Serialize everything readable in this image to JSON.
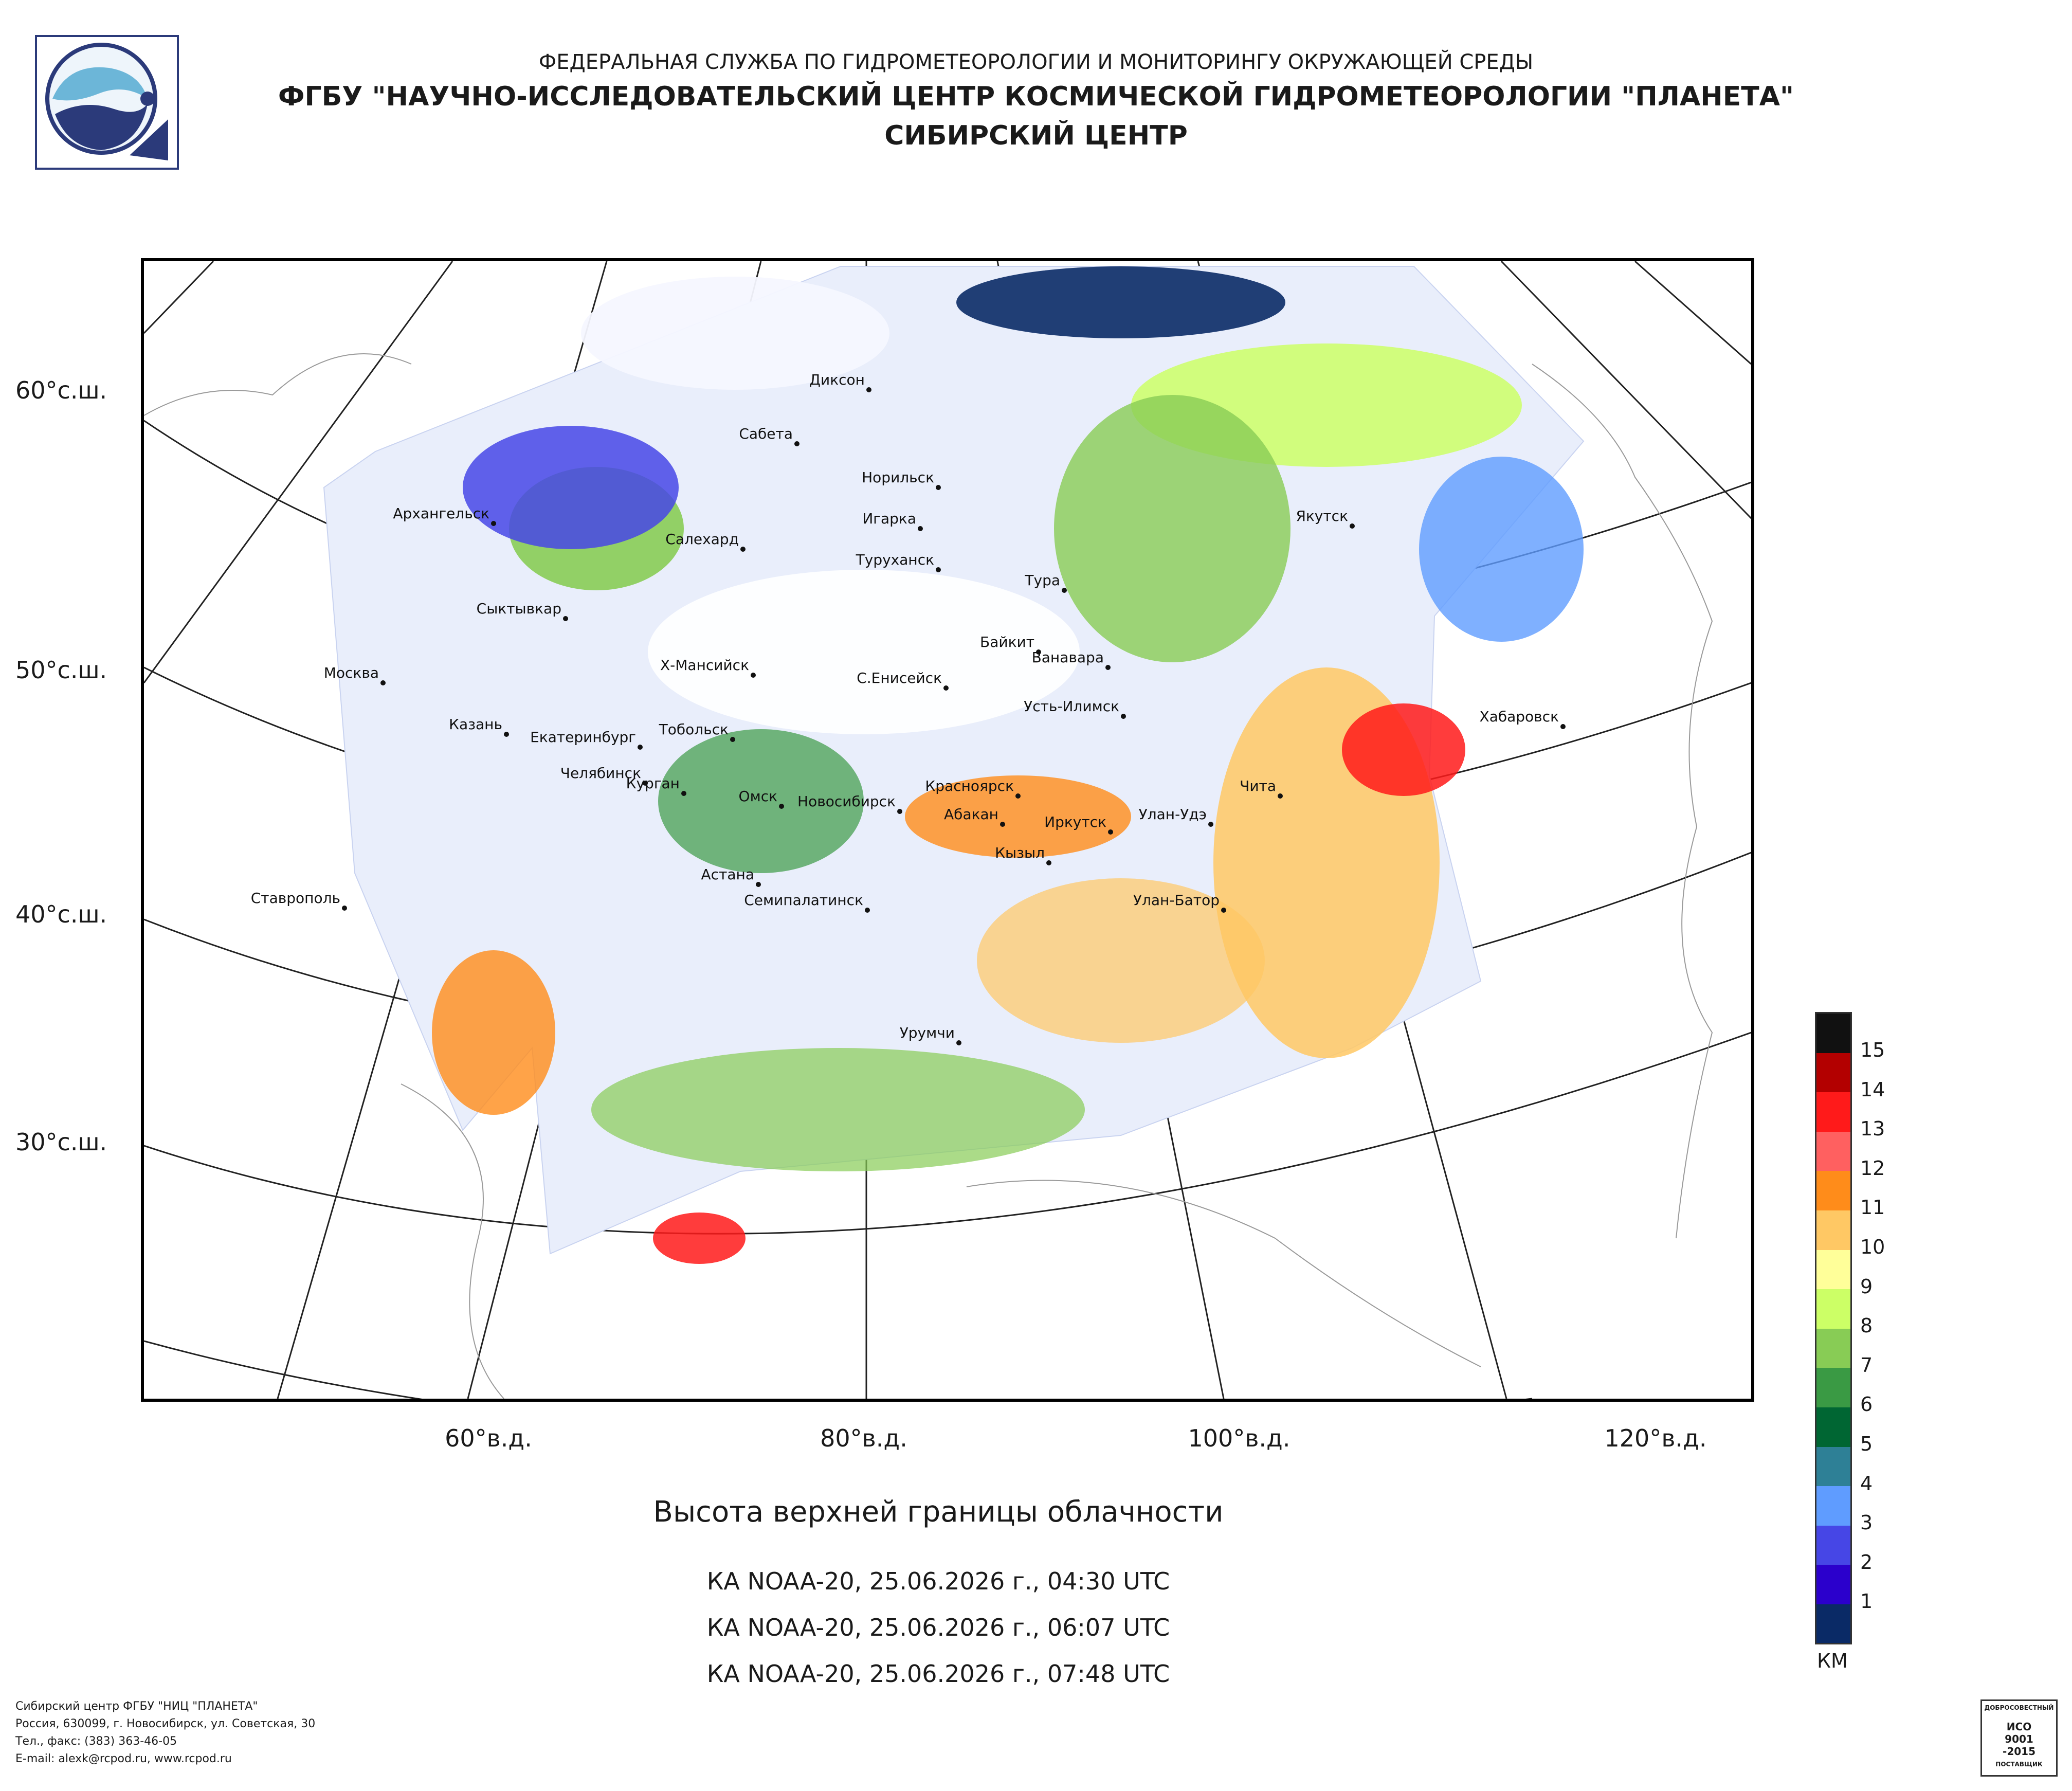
{
  "header": {
    "line1": "ФЕДЕРАЛЬНАЯ СЛУЖБА ПО ГИДРОМЕТЕОРОЛОГИИ И МОНИТОРИНГУ ОКРУЖАЮЩЕЙ СРЕДЫ",
    "line2": "ФГБУ \"НАУЧНО-ИССЛЕДОВАТЕЛЬСКИЙ ЦЕНТР КОСМИЧЕСКОЙ ГИДРОМЕТЕОРОЛОГИИ \"ПЛАНЕТА\"",
    "line3": "СИБИРСКИЙ ЦЕНТР"
  },
  "map": {
    "lat_labels": [
      "60°с.ш.",
      "50°с.ш.",
      "40°с.ш.",
      "30°с.ш."
    ],
    "lon_labels": [
      "60°в.д.",
      "80°в.д.",
      "100°в.д.",
      "120°в.д."
    ],
    "cities": [
      "Диксон",
      "Сабета",
      "Норильск",
      "Игарка",
      "Архангельск",
      "Салехард",
      "Туруханск",
      "Тура",
      "Якутск",
      "Сыктывкар",
      "Байкит",
      "Ванавара",
      "Москва",
      "Х-Мансийск",
      "С.Енисейск",
      "Усть-Илимск",
      "Хабаровск",
      "Казань",
      "Екатеринбург",
      "Тобольск",
      "Челябинск",
      "Курган",
      "Красноярск",
      "Чита",
      "Омск",
      "Новосибирск",
      "Абакан",
      "Иркутск",
      "Улан-Удэ",
      "Кызыл",
      "Астана",
      "Ставрополь",
      "Семипалатинск",
      "Улан-Батор",
      "Урумчи"
    ]
  },
  "title": "Высота верхней границы облачности",
  "passes": [
    "КА NOAA-20, 25.06.2026 г., 04:30 UTC",
    "КА NOAA-20, 25.06.2026 г., 06:07 UTC",
    "КА NOAA-20, 25.06.2026 г., 07:48 UTC"
  ],
  "legend": {
    "unit": "КМ",
    "levels": [
      "15",
      "14",
      "13",
      "12",
      "11",
      "10",
      "9",
      "8",
      "7",
      "6",
      "5",
      "4",
      "3",
      "2",
      "1"
    ],
    "colors": [
      "#111111",
      "#b30000",
      "#ff1a1a",
      "#ff6060",
      "#ff8c1a",
      "#ffc864",
      "#ffff99",
      "#ccff66",
      "#88cc55",
      "#3a9a44",
      "#006633",
      "#2e8096",
      "#5f9cff",
      "#4646e6",
      "#2b00cc",
      "#0a2a66"
    ]
  },
  "footer": [
    "Сибирский центр ФГБУ \"НИЦ \"ПЛАНЕТА\"",
    "Россия, 630099, г. Новосибирск, ул. Советская, 30",
    "Тел., факс: (383) 363-46-05",
    "E-mail: alexk@rcpod.ru, www.rcpod.ru"
  ],
  "iso_badge": {
    "text1": "ИСО",
    "text2": "9001",
    "text3": "-2015",
    "arc_top": "ДОБРОСОВЕСТНЫЙ",
    "arc_bottom": "ПОСТАВЩИК"
  }
}
